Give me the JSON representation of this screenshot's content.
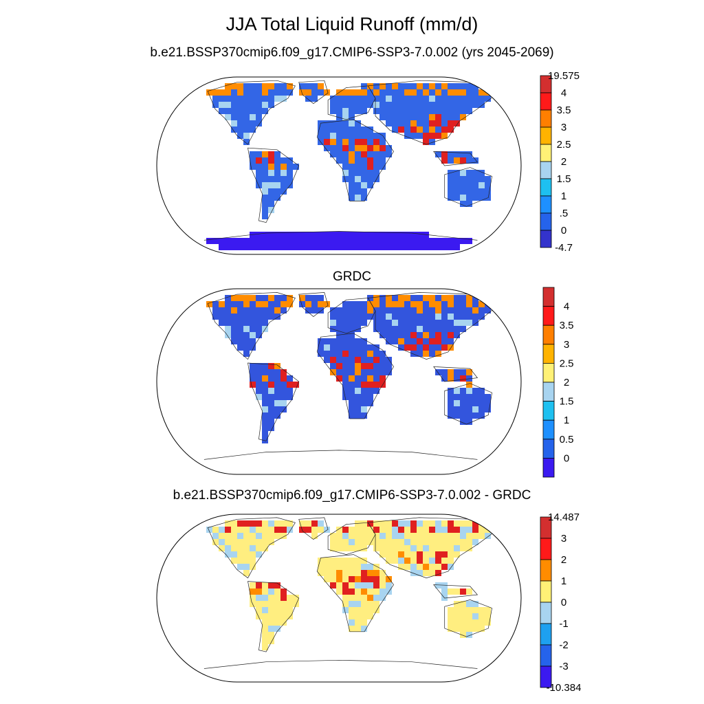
{
  "figure": {
    "title": "JJA Total Liquid Runoff (mm/d)"
  },
  "panels": [
    {
      "id": "model",
      "title": "b.e21.BSSP370cmip6.f09_g17.CMIP6-SSP3-7.0.002 (yrs 2045-2069)",
      "colorbar": {
        "labels": [
          "19.575",
          "4",
          "3.5",
          "3",
          "2.5",
          "2",
          "1.5",
          "1",
          ".5",
          "0",
          "-4.7"
        ],
        "colors": [
          "#d32f2f",
          "#ff1a1a",
          "#ff7f00",
          "#ffb300",
          "#fff176",
          "#a8d4f0",
          "#1ec0f0",
          "#1e90ff",
          "#2563eb",
          "#3333cc",
          "#3b1af0"
        ]
      }
    },
    {
      "id": "obs",
      "title": "GRDC",
      "colorbar": {
        "labels": [
          "4",
          "3.5",
          "3",
          "2.5",
          "2",
          "1.5",
          "1",
          "0.5",
          "0"
        ],
        "colors": [
          "#d32f2f",
          "#ff1a1a",
          "#ff7f00",
          "#ffb300",
          "#fff176",
          "#a8d4f0",
          "#1ec0f0",
          "#1e90ff",
          "#2563eb",
          "#3b1af0"
        ]
      }
    },
    {
      "id": "diff",
      "title": "b.e21.BSSP370cmip6.f09_g17.CMIP6-SSP3-7.0.002 - GRDC",
      "colorbar": {
        "labels": [
          "14.487",
          "3",
          "2",
          "1",
          "0",
          "-1",
          "-2",
          "-3",
          "-10.384"
        ],
        "colors": [
          "#d32f2f",
          "#ff1a1a",
          "#ff8c00",
          "#fff176",
          "#a8d4f0",
          "#1ea0f0",
          "#2563eb",
          "#3b1af0"
        ]
      }
    }
  ],
  "map_colors": {
    "model_land": "#3366e6",
    "obs_land": "#3355dd",
    "diff_land": "#ffee80",
    "hot": "#e02020",
    "warm": "#ff8c00",
    "cool": "#a8d4f0",
    "deep": "#3b1af0"
  }
}
